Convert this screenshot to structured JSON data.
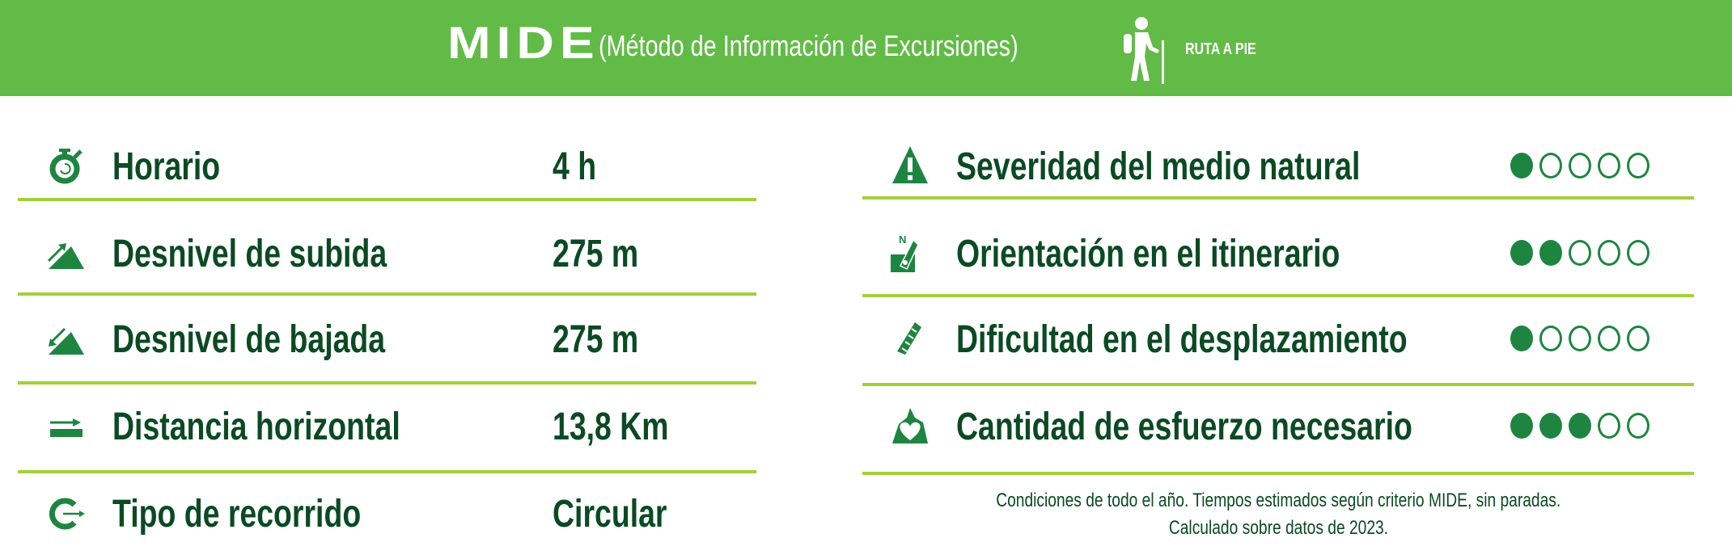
{
  "header": {
    "brand": "MIDE",
    "subtitle": "(Método de Información de Excursiones)",
    "mode_icon": "hiker-icon",
    "mode_label": "RUTA A PIE",
    "background": "#62bb47"
  },
  "colors": {
    "text": "#0b4a23",
    "icon": "#1e8540",
    "divider": "#a4cf3a"
  },
  "left": [
    {
      "icon": "stopwatch-icon",
      "label": "Horario",
      "value": "4 h"
    },
    {
      "icon": "ascent-icon",
      "label": "Desnivel de subida",
      "value": "275 m"
    },
    {
      "icon": "descent-icon",
      "label": "Desnivel de bajada",
      "value": "275 m"
    },
    {
      "icon": "horizontal-distance-icon",
      "label": "Distancia horizontal",
      "value": "13,8 Km"
    },
    {
      "icon": "circular-route-icon",
      "label": "Tipo de recorrido",
      "value": "Circular"
    }
  ],
  "right": [
    {
      "icon": "warning-mountain-icon",
      "label": "Severidad del medio natural",
      "rating": 1,
      "max": 5
    },
    {
      "icon": "compass-orientation-icon",
      "label": "Orientación en el itinerario",
      "rating": 2,
      "max": 5
    },
    {
      "icon": "boot-print-icon",
      "label": "Dificultad en el desplazamiento",
      "rating": 1,
      "max": 5
    },
    {
      "icon": "heart-effort-icon",
      "label": "Cantidad de esfuerzo necesario",
      "rating": 3,
      "max": 5
    }
  ],
  "footer": {
    "line1": "Condiciones de todo el año. Tiempos estimados según criterio MIDE, sin paradas.",
    "line2": "Calculado sobre datos de 2023."
  }
}
